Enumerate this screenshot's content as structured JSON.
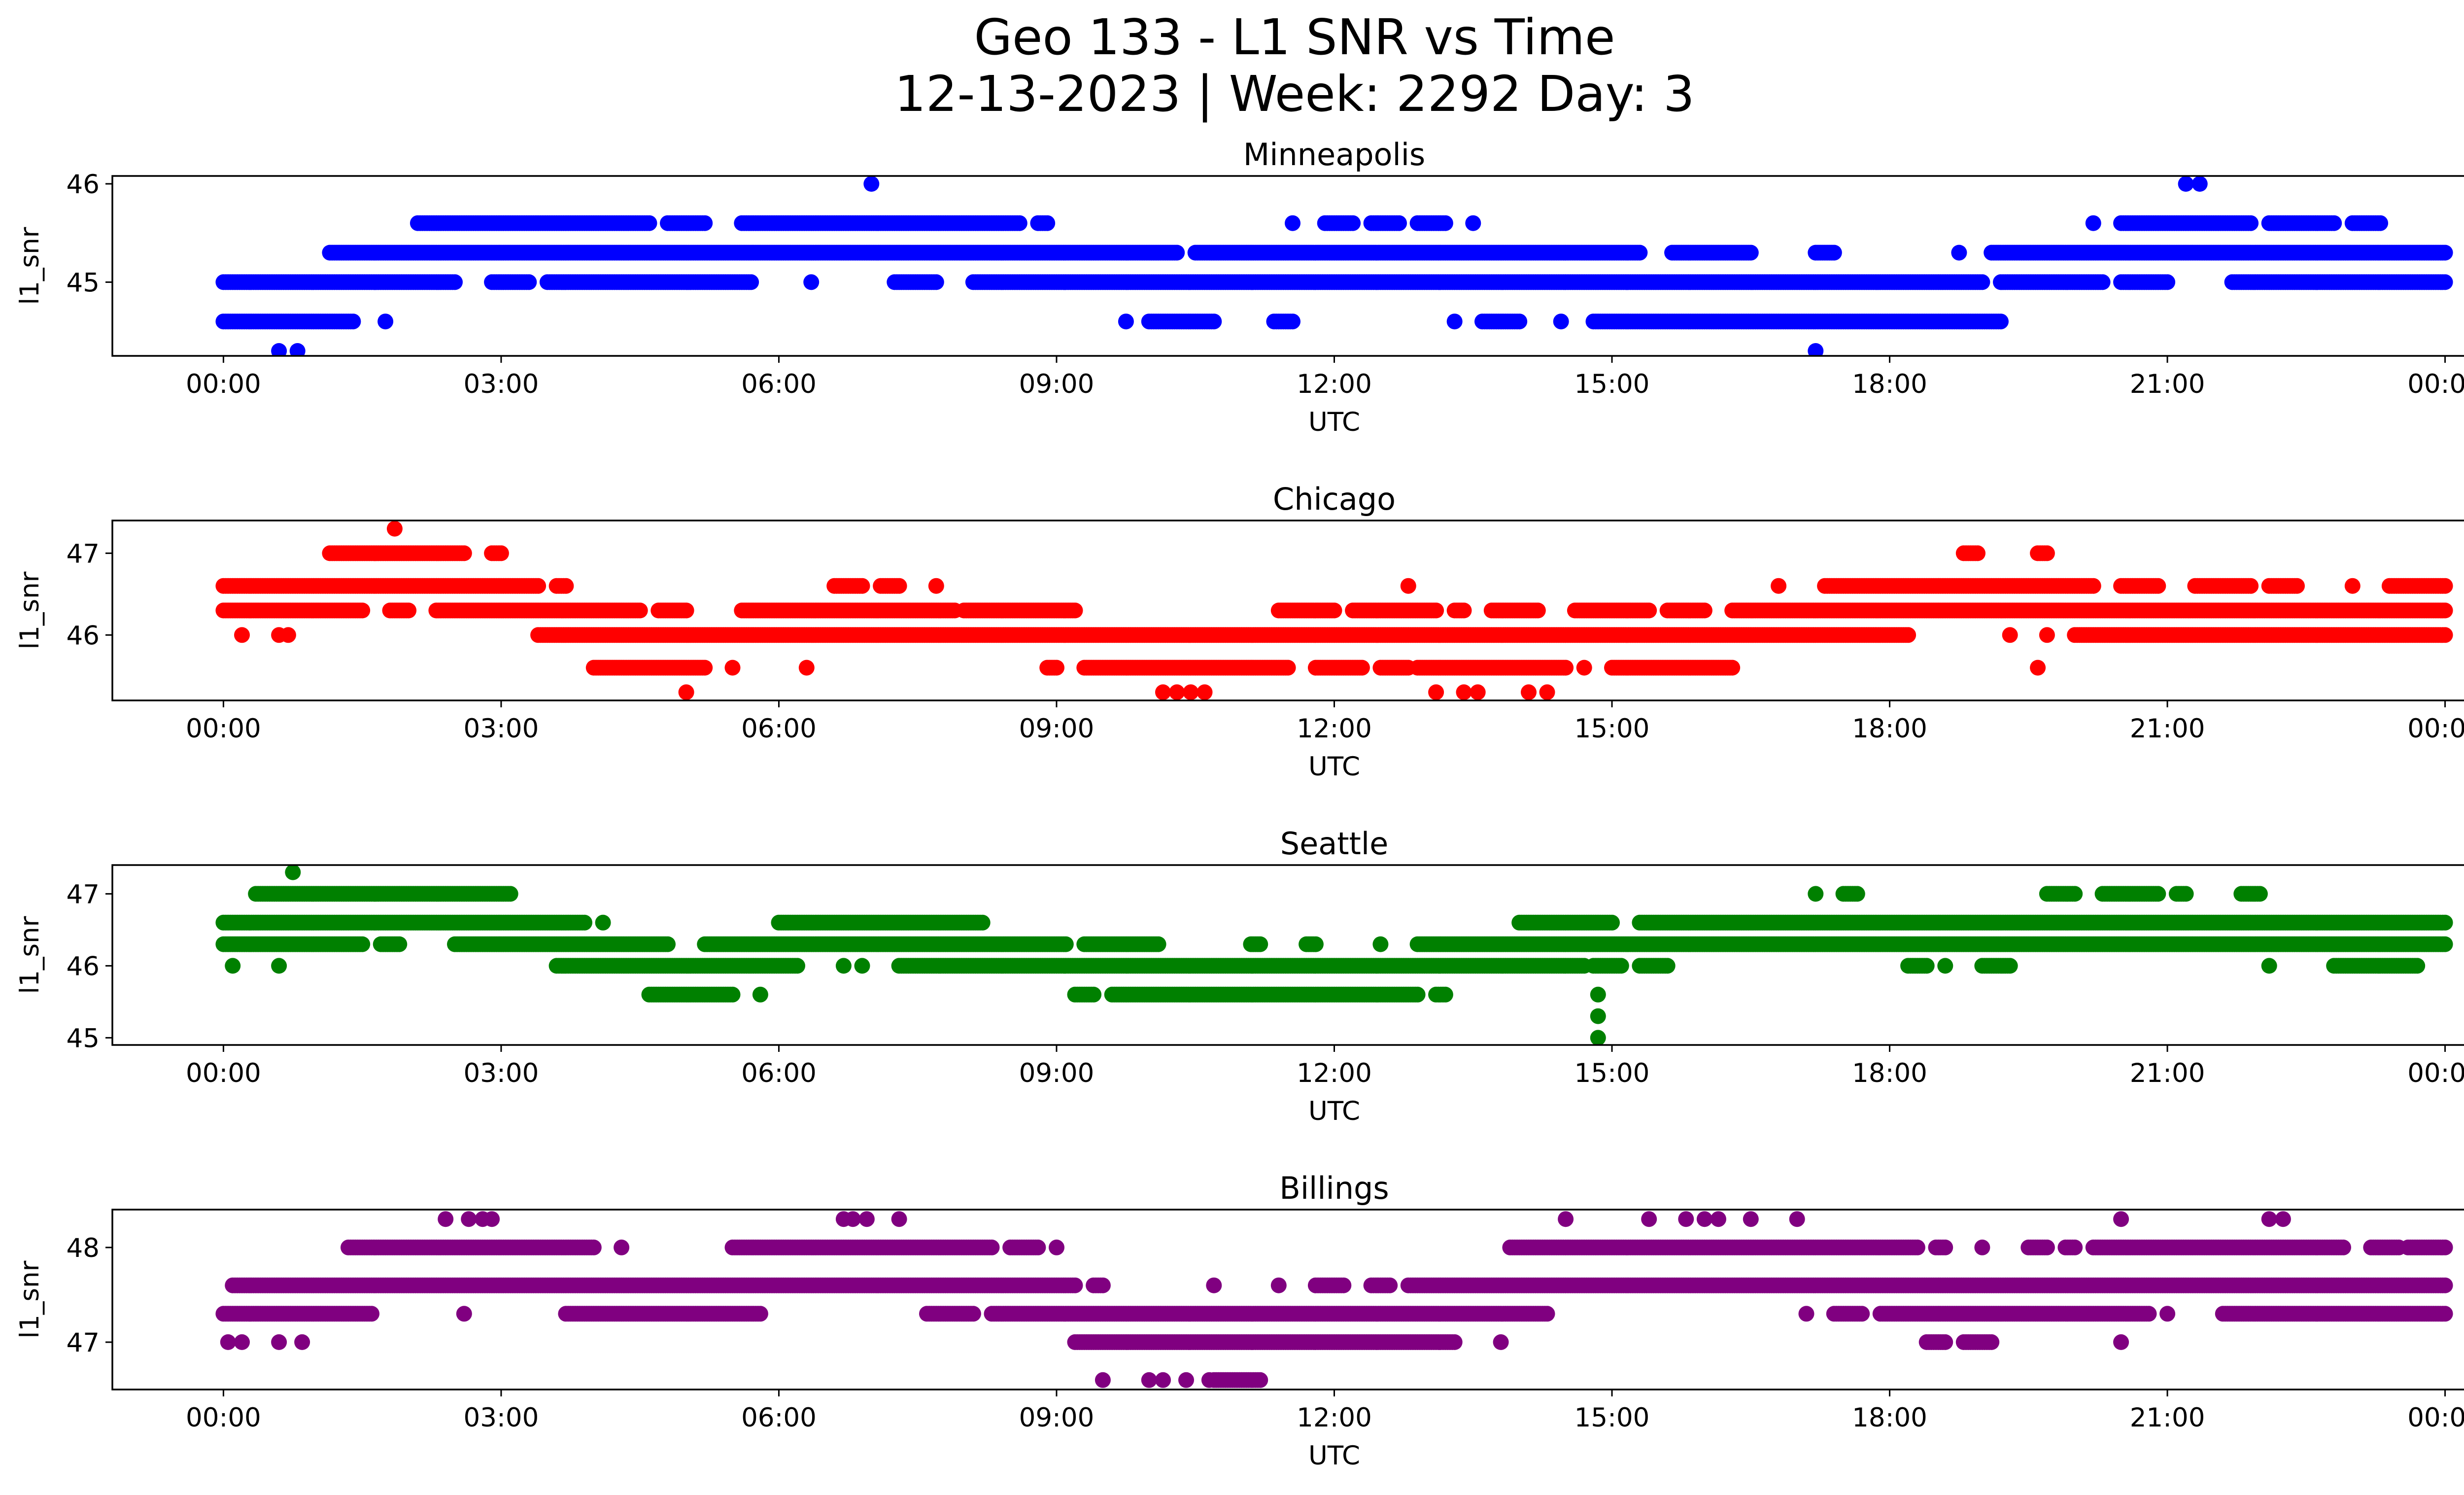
{
  "title_line1": "Geo 133 - L1 SNR vs Time",
  "title_line2": "12-13-2023 | Week: 2292 Day: 3",
  "chart_data": [
    {
      "type": "scatter",
      "title": "Minneapolis",
      "xlabel": "UTC",
      "ylabel": "l1_snr",
      "color": "#0000ff",
      "xticks": [
        "00:00",
        "03:00",
        "06:00",
        "09:00",
        "12:00",
        "15:00",
        "18:00",
        "21:00",
        "00:00"
      ],
      "xlim_hours": [
        -1.2,
        25.2
      ],
      "ylim": [
        44.25,
        46.08
      ],
      "yticks": [
        45,
        46
      ],
      "levels": [
        {
          "y": 44.3,
          "kind": "points",
          "x": [
            0.6,
            0.8,
            17.2
          ]
        },
        {
          "y": 44.6,
          "kind": "runs",
          "runs": [
            [
              0.0,
              1.4
            ],
            [
              1.75,
              1.75
            ],
            [
              9.75,
              9.75
            ],
            [
              10.0,
              10.7
            ],
            [
              11.35,
              11.55
            ],
            [
              13.3,
              13.3
            ],
            [
              13.6,
              14.0
            ],
            [
              14.45,
              14.45
            ],
            [
              14.8,
              19.2
            ]
          ]
        },
        {
          "y": 45.0,
          "kind": "runs",
          "runs": [
            [
              0.0,
              2.5
            ],
            [
              2.9,
              3.3
            ],
            [
              3.5,
              5.7
            ],
            [
              6.35,
              6.35
            ],
            [
              7.25,
              7.7
            ],
            [
              8.1,
              19.0
            ],
            [
              19.2,
              20.3
            ],
            [
              20.5,
              21.0
            ],
            [
              21.7,
              24.0
            ]
          ]
        },
        {
          "y": 45.3,
          "kind": "runs",
          "runs": [
            [
              1.15,
              10.3
            ],
            [
              10.5,
              15.3
            ],
            [
              15.65,
              16.5
            ],
            [
              17.2,
              17.4
            ],
            [
              18.75,
              18.75
            ],
            [
              19.1,
              24.0
            ]
          ]
        },
        {
          "y": 45.6,
          "kind": "runs",
          "runs": [
            [
              2.1,
              4.6
            ],
            [
              4.8,
              5.2
            ],
            [
              5.6,
              8.6
            ],
            [
              8.8,
              8.9
            ],
            [
              11.55,
              11.55
            ],
            [
              11.9,
              12.2
            ],
            [
              12.4,
              12.7
            ],
            [
              12.9,
              13.2
            ],
            [
              13.5,
              13.5
            ],
            [
              20.2,
              20.2
            ],
            [
              20.5,
              21.9
            ],
            [
              22.1,
              22.8
            ],
            [
              23.0,
              23.3
            ]
          ]
        },
        {
          "y": 46.0,
          "kind": "points",
          "x": [
            7.0,
            21.2,
            21.35
          ]
        }
      ]
    },
    {
      "type": "scatter",
      "title": "Chicago",
      "xlabel": "UTC",
      "ylabel": "l1_snr",
      "color": "#ff0000",
      "xticks": [
        "00:00",
        "03:00",
        "06:00",
        "09:00",
        "12:00",
        "15:00",
        "18:00",
        "21:00",
        "00:00"
      ],
      "xlim_hours": [
        -1.2,
        25.2
      ],
      "ylim": [
        45.2,
        47.4
      ],
      "yticks": [
        46,
        47
      ],
      "levels": [
        {
          "y": 45.3,
          "kind": "points",
          "x": [
            5.0,
            10.15,
            10.3,
            10.45,
            10.6,
            13.1,
            13.4,
            13.55,
            14.1,
            14.3
          ]
        },
        {
          "y": 45.6,
          "kind": "runs",
          "runs": [
            [
              4.0,
              5.2
            ],
            [
              5.5,
              5.5
            ],
            [
              6.3,
              6.3
            ],
            [
              8.9,
              9.0
            ],
            [
              9.3,
              11.5
            ],
            [
              11.8,
              12.3
            ],
            [
              12.5,
              12.8
            ],
            [
              12.9,
              14.5
            ],
            [
              14.7,
              14.7
            ],
            [
              15.0,
              16.3
            ],
            [
              19.6,
              19.6
            ]
          ]
        },
        {
          "y": 46.0,
          "kind": "points",
          "x": [
            0.2,
            0.6,
            0.7
          ]
        },
        {
          "y": 46.0,
          "kind": "runs",
          "runs": [
            [
              3.4,
              18.2
            ],
            [
              19.3,
              19.3
            ],
            [
              19.7,
              19.7
            ],
            [
              20.0,
              24.0
            ]
          ]
        },
        {
          "y": 46.3,
          "kind": "runs",
          "runs": [
            [
              0.0,
              1.5
            ],
            [
              1.8,
              2.0
            ],
            [
              2.3,
              4.5
            ],
            [
              4.7,
              5.0
            ],
            [
              5.6,
              7.9
            ],
            [
              8.0,
              9.2
            ],
            [
              11.4,
              12.0
            ],
            [
              12.2,
              13.1
            ],
            [
              13.3,
              13.4
            ],
            [
              13.7,
              14.2
            ],
            [
              14.6,
              15.4
            ],
            [
              15.6,
              16.0
            ],
            [
              16.3,
              24.0
            ]
          ]
        },
        {
          "y": 46.6,
          "kind": "runs",
          "runs": [
            [
              0.0,
              3.4
            ],
            [
              3.6,
              3.7
            ],
            [
              6.6,
              6.9
            ],
            [
              7.1,
              7.3
            ],
            [
              7.7,
              7.7
            ],
            [
              12.8,
              12.8
            ],
            [
              16.8,
              16.8
            ],
            [
              17.3,
              20.2
            ],
            [
              20.5,
              20.9
            ],
            [
              21.3,
              21.9
            ],
            [
              22.1,
              22.4
            ],
            [
              23.0,
              23.0
            ],
            [
              23.4,
              24.0
            ]
          ]
        },
        {
          "y": 47.0,
          "kind": "runs",
          "runs": [
            [
              1.15,
              2.6
            ],
            [
              2.9,
              3.0
            ],
            [
              18.8,
              18.95
            ],
            [
              19.6,
              19.7
            ]
          ]
        },
        {
          "y": 47.3,
          "kind": "points",
          "x": [
            1.85
          ]
        }
      ]
    },
    {
      "type": "scatter",
      "title": "Seattle",
      "xlabel": "UTC",
      "ylabel": "l1_snr",
      "color": "#008000",
      "xticks": [
        "00:00",
        "03:00",
        "06:00",
        "09:00",
        "12:00",
        "15:00",
        "18:00",
        "21:00",
        "00:00"
      ],
      "xlim_hours": [
        -1.2,
        25.2
      ],
      "ylim": [
        44.9,
        47.4
      ],
      "yticks": [
        45,
        46,
        47
      ],
      "levels": [
        {
          "y": 45.0,
          "kind": "points",
          "x": [
            14.85
          ]
        },
        {
          "y": 45.3,
          "kind": "points",
          "x": [
            14.85
          ]
        },
        {
          "y": 45.6,
          "kind": "runs",
          "runs": [
            [
              4.6,
              5.5
            ],
            [
              5.8,
              5.8
            ],
            [
              9.2,
              9.4
            ],
            [
              9.6,
              12.9
            ],
            [
              13.1,
              13.2
            ],
            [
              14.85,
              14.85
            ]
          ]
        },
        {
          "y": 46.0,
          "kind": "points",
          "x": [
            0.1,
            0.6,
            6.7,
            6.9
          ]
        },
        {
          "y": 46.0,
          "kind": "runs",
          "runs": [
            [
              3.6,
              6.2
            ],
            [
              7.3,
              14.7
            ],
            [
              14.8,
              15.1
            ],
            [
              15.3,
              15.6
            ],
            [
              18.2,
              18.4
            ],
            [
              18.6,
              18.6
            ],
            [
              19.0,
              19.3
            ],
            [
              22.1,
              22.1
            ],
            [
              22.8,
              23.7
            ]
          ]
        },
        {
          "y": 46.3,
          "kind": "runs",
          "runs": [
            [
              0.0,
              1.5
            ],
            [
              1.7,
              1.9
            ],
            [
              2.5,
              4.8
            ],
            [
              5.2,
              9.1
            ],
            [
              9.3,
              10.1
            ],
            [
              11.1,
              11.2
            ],
            [
              11.7,
              11.8
            ],
            [
              12.5,
              12.5
            ],
            [
              12.9,
              24.0
            ]
          ]
        },
        {
          "y": 46.6,
          "kind": "runs",
          "runs": [
            [
              0.0,
              3.9
            ],
            [
              4.1,
              4.1
            ],
            [
              6.0,
              8.2
            ],
            [
              14.0,
              15.0
            ],
            [
              15.3,
              24.0
            ]
          ]
        },
        {
          "y": 47.0,
          "kind": "runs",
          "runs": [
            [
              0.35,
              3.1
            ],
            [
              17.2,
              17.2
            ],
            [
              17.5,
              17.65
            ],
            [
              19.7,
              20.0
            ],
            [
              20.3,
              20.9
            ],
            [
              21.1,
              21.2
            ],
            [
              21.8,
              22.0
            ]
          ]
        },
        {
          "y": 47.3,
          "kind": "points",
          "x": [
            0.75
          ]
        }
      ]
    },
    {
      "type": "scatter",
      "title": "Billings",
      "xlabel": "UTC",
      "ylabel": "l1_snr",
      "color": "#800080",
      "xticks": [
        "00:00",
        "03:00",
        "06:00",
        "09:00",
        "12:00",
        "15:00",
        "18:00",
        "21:00",
        "00:00"
      ],
      "xlim_hours": [
        -1.2,
        25.2
      ],
      "ylim": [
        46.5,
        48.4
      ],
      "yticks": [
        47,
        48
      ],
      "levels": [
        {
          "y": 46.6,
          "kind": "points",
          "x": [
            9.5,
            10.0,
            10.15,
            10.4,
            10.65
          ]
        },
        {
          "y": 46.6,
          "kind": "runs",
          "runs": [
            [
              10.7,
              11.2
            ]
          ]
        },
        {
          "y": 47.0,
          "kind": "points",
          "x": [
            0.05,
            0.2,
            0.6,
            0.85,
            20.5
          ]
        },
        {
          "y": 47.0,
          "kind": "runs",
          "runs": [
            [
              9.2,
              13.3
            ],
            [
              13.8,
              13.8
            ],
            [
              18.4,
              18.6
            ],
            [
              18.8,
              19.1
            ]
          ]
        },
        {
          "y": 47.3,
          "kind": "points",
          "x": [
            2.6
          ]
        },
        {
          "y": 47.3,
          "kind": "runs",
          "runs": [
            [
              0.0,
              1.6
            ],
            [
              3.7,
              5.8
            ],
            [
              7.6,
              8.1
            ],
            [
              8.3,
              14.3
            ],
            [
              17.1,
              17.1
            ],
            [
              17.4,
              17.7
            ],
            [
              17.9,
              20.8
            ],
            [
              21.0,
              21.0
            ],
            [
              21.6,
              24.0
            ]
          ]
        },
        {
          "y": 47.6,
          "kind": "runs",
          "runs": [
            [
              0.1,
              9.2
            ],
            [
              9.4,
              9.5
            ],
            [
              10.7,
              10.7
            ],
            [
              11.4,
              11.4
            ],
            [
              11.8,
              12.1
            ],
            [
              12.4,
              12.6
            ],
            [
              12.8,
              24.0
            ]
          ]
        },
        {
          "y": 48.0,
          "kind": "runs",
          "runs": [
            [
              1.35,
              4.0
            ],
            [
              4.3,
              4.3
            ],
            [
              5.5,
              8.3
            ],
            [
              8.5,
              8.8
            ],
            [
              9.0,
              9.0
            ],
            [
              13.9,
              18.3
            ],
            [
              18.5,
              18.6
            ],
            [
              19.0,
              19.0
            ],
            [
              19.5,
              19.7
            ],
            [
              19.9,
              20.0
            ],
            [
              20.2,
              22.9
            ],
            [
              23.2,
              23.5
            ],
            [
              23.6,
              24.0
            ]
          ]
        },
        {
          "y": 48.3,
          "kind": "points",
          "x": [
            2.4,
            2.65,
            2.8,
            2.9,
            6.7,
            6.8,
            6.95,
            7.3,
            14.5,
            15.4,
            15.8,
            16.0,
            16.15,
            16.5,
            17.0,
            20.5,
            22.1,
            22.25
          ]
        }
      ]
    }
  ]
}
